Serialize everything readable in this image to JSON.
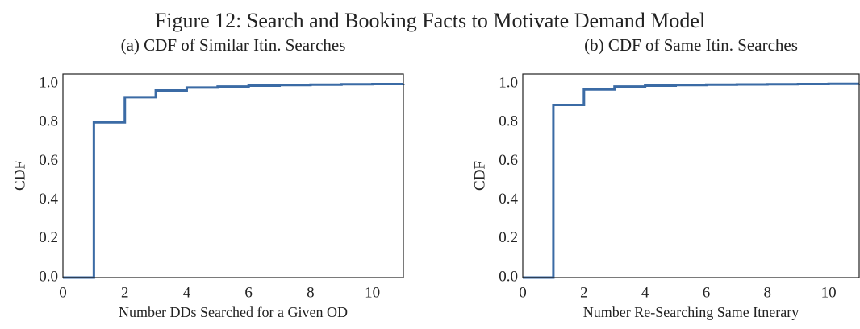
{
  "title": "Figure 12: Search and Booking Facts to Motivate Demand Model",
  "chart_data": [
    {
      "type": "step",
      "title": "(a) CDF of Similar Itin. Searches",
      "xlabel": "Number DDs Searched for a Given OD",
      "ylabel": "CDF",
      "x": [
        0,
        1,
        2,
        3,
        4,
        5,
        6,
        7,
        8,
        9,
        10,
        11
      ],
      "series": [
        {
          "name": "CDF",
          "color": "#3b6ba5",
          "values": [
            0,
            0.8,
            0.93,
            0.965,
            0.98,
            0.985,
            0.99,
            0.993,
            0.995,
            0.997,
            0.998,
            1.0
          ]
        }
      ],
      "xlim": [
        0,
        11
      ],
      "ylim": [
        0,
        1.05
      ],
      "xticks": [
        0,
        2,
        4,
        6,
        8,
        10
      ],
      "yticks": [
        {
          "value": 0,
          "label": "0.0"
        },
        {
          "value": 0.2,
          "label": "0.2"
        },
        {
          "value": 0.4,
          "label": "0.4"
        },
        {
          "value": 0.6,
          "label": "0.6"
        },
        {
          "value": 0.8,
          "label": "0.8"
        },
        {
          "value": 1,
          "label": "1.0"
        }
      ],
      "grid": false
    },
    {
      "type": "step",
      "title": "(b) CDF of Same Itin. Searches",
      "xlabel": "Number Re-Searching Same Itnerary",
      "ylabel": "CDF",
      "x": [
        0,
        1,
        2,
        3,
        4,
        5,
        6,
        7,
        8,
        9,
        10,
        11
      ],
      "series": [
        {
          "name": "CDF",
          "color": "#3b6ba5",
          "values": [
            0,
            0.89,
            0.97,
            0.985,
            0.99,
            0.993,
            0.995,
            0.996,
            0.997,
            0.998,
            0.999,
            1.0
          ]
        }
      ],
      "xlim": [
        0,
        11
      ],
      "ylim": [
        0,
        1.05
      ],
      "xticks": [
        0,
        2,
        4,
        6,
        8,
        10
      ],
      "yticks": [
        {
          "value": 0,
          "label": "0.0"
        },
        {
          "value": 0.2,
          "label": "0.2"
        },
        {
          "value": 0.4,
          "label": "0.4"
        },
        {
          "value": 0.6,
          "label": "0.6"
        },
        {
          "value": 0.8,
          "label": "0.8"
        },
        {
          "value": 1,
          "label": "1.0"
        }
      ],
      "grid": false
    }
  ]
}
